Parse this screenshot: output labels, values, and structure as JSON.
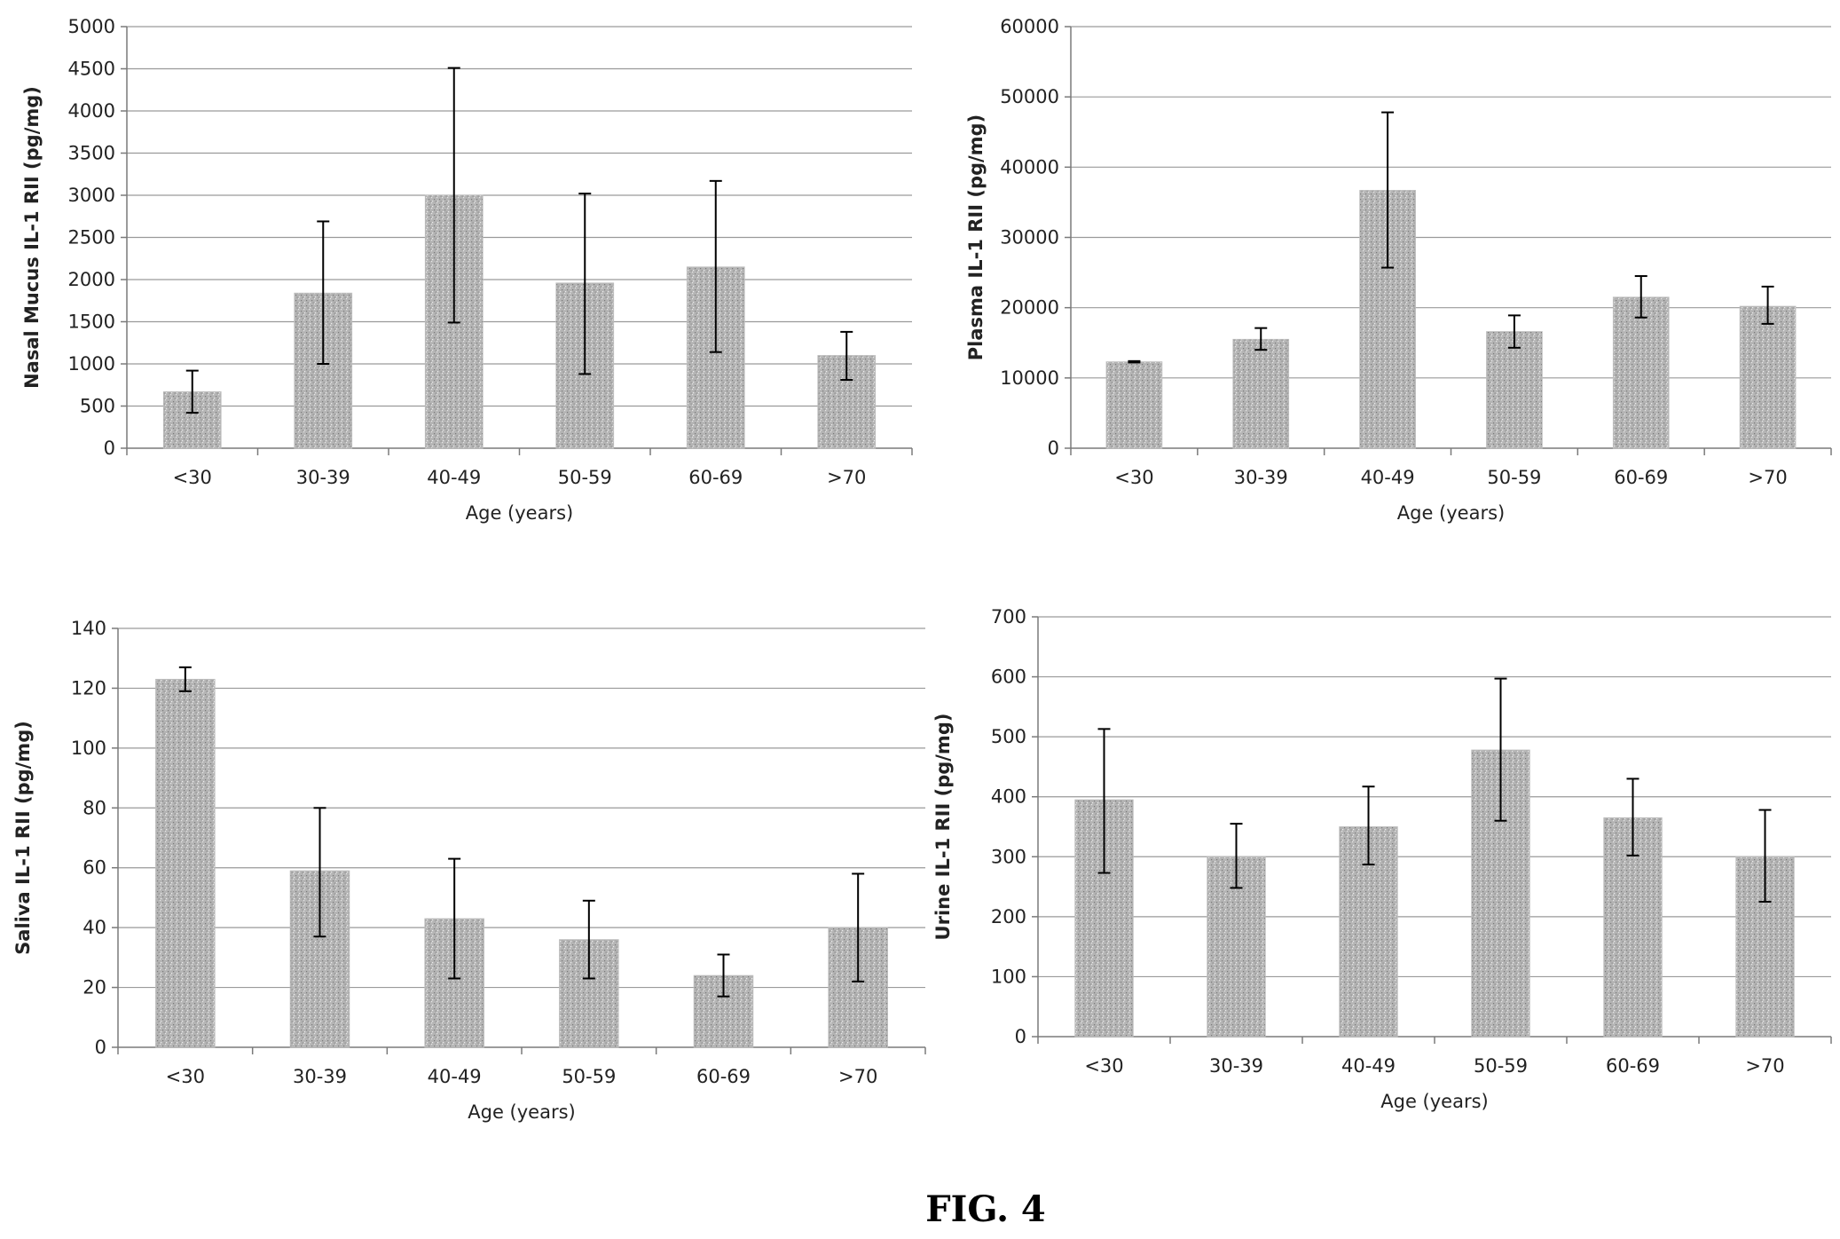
{
  "figure": {
    "caption": "FIG. 4"
  },
  "colors": {
    "bar": "#b4b4b4",
    "gridline": "#9a9a9a",
    "error_bar": "#000000"
  },
  "chart_data": [
    {
      "type": "bar",
      "title": "",
      "xlabel": "Age (years)",
      "ylabel": "Nasal Mucus IL-1 RII (pg/mg)",
      "categories": [
        "<30",
        "30-39",
        "40-49",
        "50-59",
        "60-69",
        ">70"
      ],
      "values": [
        670,
        1840,
        3000,
        1960,
        2150,
        1100
      ],
      "error_low": [
        420,
        1000,
        1490,
        880,
        1140,
        810
      ],
      "error_high": [
        920,
        2690,
        4510,
        3020,
        3170,
        1380
      ],
      "ylim": [
        0,
        5000
      ],
      "yticks": [
        0,
        500,
        1000,
        1500,
        2000,
        2500,
        3000,
        3500,
        4000,
        4500,
        5000
      ],
      "grid": true,
      "legend": "none"
    },
    {
      "type": "bar",
      "title": "",
      "xlabel": "Age (years)",
      "ylabel": "Plasma IL-1 RII (pg/mg)",
      "categories": [
        "<30",
        "30-39",
        "40-49",
        "50-59",
        "60-69",
        ">70"
      ],
      "values": [
        12300,
        15500,
        36700,
        16600,
        21500,
        20200
      ],
      "error_low": [
        12200,
        14000,
        25700,
        14300,
        18600,
        17700
      ],
      "error_high": [
        12400,
        17100,
        47800,
        18900,
        24500,
        23000
      ],
      "ylim": [
        0,
        60000
      ],
      "yticks": [
        0,
        10000,
        20000,
        30000,
        40000,
        50000,
        60000
      ],
      "grid": true,
      "legend": "none"
    },
    {
      "type": "bar",
      "title": "",
      "xlabel": "Age (years)",
      "ylabel": "Saliva IL-1 RII (pg/mg)",
      "categories": [
        "<30",
        "30-39",
        "40-49",
        "50-59",
        "60-69",
        ">70"
      ],
      "values": [
        123,
        59,
        43,
        36,
        24,
        40
      ],
      "error_low": [
        119,
        37,
        23,
        23,
        17,
        22
      ],
      "error_high": [
        127,
        80,
        63,
        49,
        31,
        58
      ],
      "ylim": [
        0,
        140
      ],
      "yticks": [
        0,
        20,
        40,
        60,
        80,
        100,
        120,
        140
      ],
      "grid": true,
      "legend": "none"
    },
    {
      "type": "bar",
      "title": "",
      "xlabel": "Age (years)",
      "ylabel": "Urine IL-1 RII (pg/mg)",
      "categories": [
        "<30",
        "30-39",
        "40-49",
        "50-59",
        "60-69",
        ">70"
      ],
      "values": [
        395,
        300,
        350,
        478,
        365,
        300
      ],
      "error_low": [
        273,
        248,
        287,
        360,
        302,
        225
      ],
      "error_high": [
        513,
        355,
        417,
        597,
        430,
        378
      ],
      "ylim": [
        0,
        700
      ],
      "yticks": [
        0,
        100,
        200,
        300,
        400,
        500,
        600,
        700
      ],
      "grid": true,
      "legend": "none"
    }
  ]
}
